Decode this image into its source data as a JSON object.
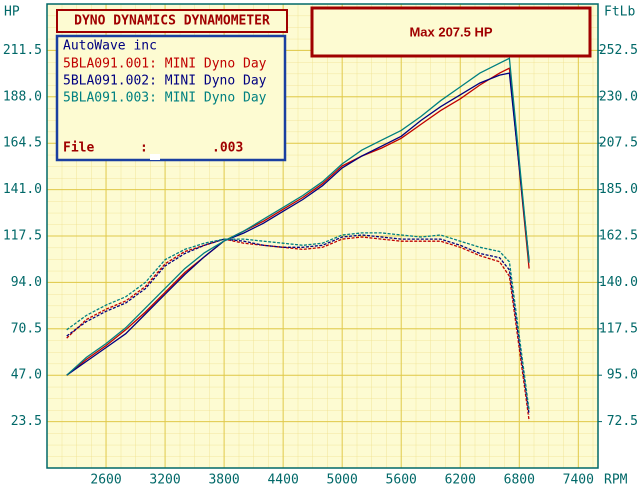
{
  "chart_data": {
    "type": "line",
    "title": "DYNO DYNAMICS DYNAMOMETER",
    "headline": "Max 207.5 HP",
    "y_label": "HP",
    "y2_label": "FtLb",
    "x_label": "RPM",
    "grid": true,
    "x": [
      2200,
      2400,
      2600,
      2800,
      3000,
      3200,
      3400,
      3600,
      3800,
      4000,
      4200,
      4400,
      4600,
      4800,
      5000,
      5200,
      5400,
      5600,
      5800,
      6000,
      6200,
      6400,
      6600,
      6700,
      6900
    ],
    "xlim": [
      2000,
      7600
    ],
    "xticks": [
      2600,
      3200,
      3800,
      4400,
      5000,
      5600,
      6200,
      6800,
      7400
    ],
    "ylim": [
      0,
      235
    ],
    "yticks": [
      23.5,
      {
        "value": 47,
        "label": "47.0"
      },
      70.5,
      {
        "value": 94,
        "label": "94.0"
      },
      117.5,
      {
        "value": 141,
        "label": "141.0"
      },
      164.5,
      {
        "value": 188,
        "label": "188.0"
      },
      211.5
    ],
    "y2lim": [
      50,
      275
    ],
    "y2ticks": [
      72.5,
      {
        "value": 95,
        "label": "95.0"
      },
      117.5,
      {
        "value": 140,
        "label": "140.0"
      },
      162.5,
      {
        "value": 185,
        "label": "185.0"
      },
      207.5,
      {
        "value": 230,
        "label": "230.0"
      },
      252.5
    ],
    "legend": {
      "header": "AutoWave inc",
      "file_label": "File",
      "file_sep": ":",
      "file_value": ".003"
    },
    "series": [
      {
        "name": "5BLA091.001: MINI Dyno Day",
        "color": "#c00000",
        "values": [
          47,
          55,
          62,
          70,
          79,
          89,
          99,
          107,
          115,
          120,
          125,
          131,
          137,
          144,
          153,
          158,
          162,
          167,
          174,
          181,
          187,
          194,
          200,
          202.5,
          101
        ],
        "y2_values": [
          113,
          122,
          127,
          131,
          138,
          149,
          155,
          158,
          161,
          159,
          158,
          157,
          156,
          157,
          161,
          162,
          161,
          160,
          160,
          160,
          157,
          153,
          150,
          143,
          73
        ]
      },
      {
        "name": "5BLA091.002: MINI Dyno Day",
        "color": "#000080",
        "values": [
          47,
          54,
          61,
          68,
          78,
          88,
          98,
          107,
          115,
          119,
          124,
          130,
          136,
          143,
          152,
          158,
          163,
          168,
          176,
          183,
          189,
          195,
          199,
          200,
          105
        ],
        "y2_values": [
          114,
          121,
          126,
          130,
          137,
          148,
          154,
          158,
          161,
          160,
          158,
          157,
          157,
          158,
          162,
          163,
          162,
          161,
          161,
          161,
          158,
          154,
          152,
          146,
          76
        ]
      },
      {
        "name": "5BLA091.003: MINI Dyno Day",
        "color": "#008080",
        "values": [
          47,
          56,
          63,
          71,
          81,
          91,
          101,
          109,
          115,
          120,
          126,
          132,
          138,
          145,
          154,
          161,
          166,
          171,
          178,
          186,
          193,
          200,
          205,
          207.5,
          104
        ],
        "y2_values": [
          117,
          124,
          129,
          133,
          140,
          151,
          156,
          159,
          161,
          161,
          160,
          159,
          158,
          159,
          163,
          164,
          164,
          163,
          162,
          163,
          160,
          157,
          155,
          150,
          78
        ]
      }
    ]
  }
}
